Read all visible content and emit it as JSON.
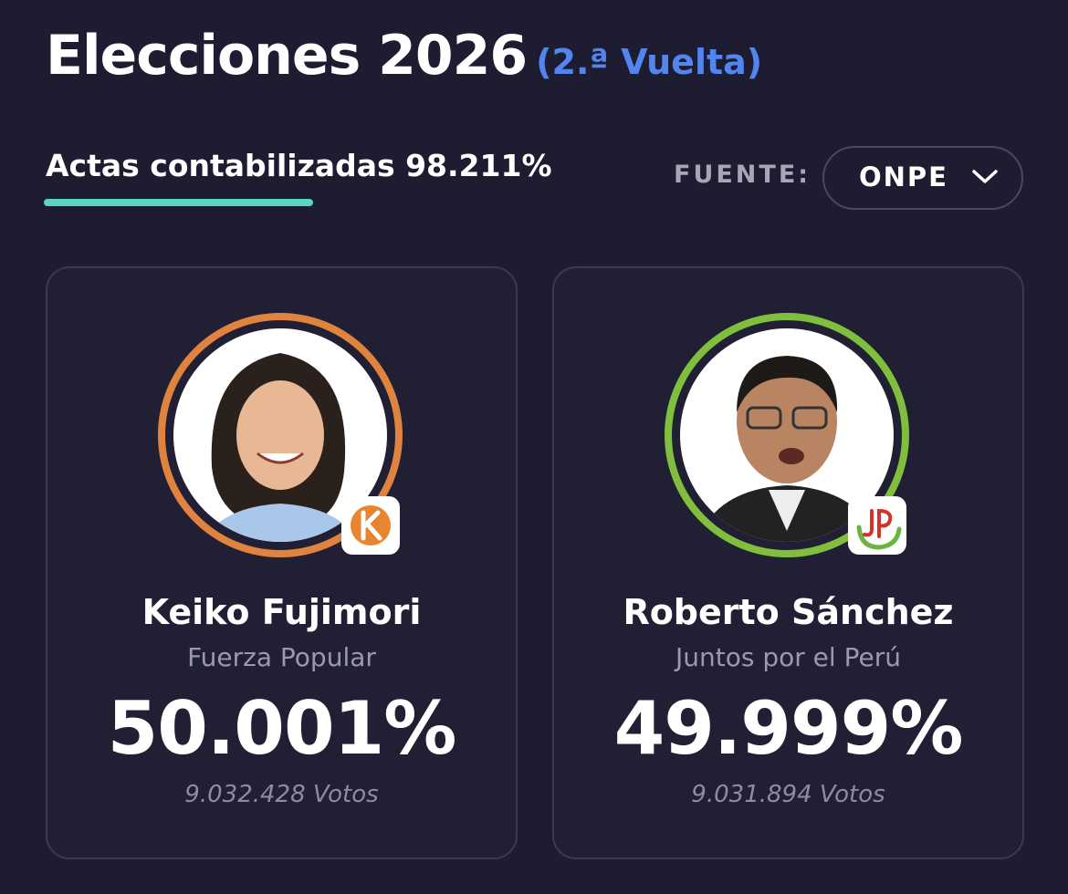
{
  "header": {
    "title": "Elecciones 2026",
    "subtitle": "(2.ª Vuelta)"
  },
  "progress": {
    "label": "Actas contabilizadas 98.211%"
  },
  "source": {
    "label": "FUENTE:",
    "value": "ONPE"
  },
  "candidates": [
    {
      "name": "Keiko Fujimori",
      "party": "Fuerza Popular",
      "percent": "50.001%",
      "votes": "9.032.428 Votos"
    },
    {
      "name": "Roberto Sánchez",
      "party": "Juntos por el Perú",
      "percent": "49.999%",
      "votes": "9.031.894 Votos"
    }
  ]
}
